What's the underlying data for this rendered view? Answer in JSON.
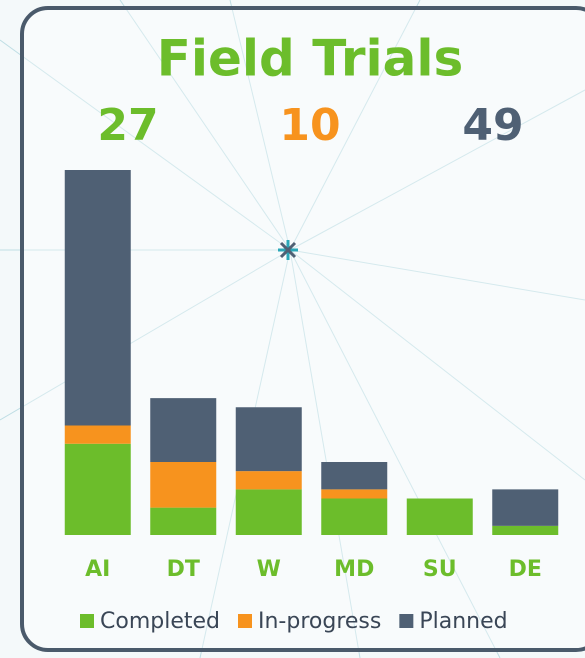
{
  "chart_data": {
    "type": "stacked-bar",
    "title": "Field Trials",
    "totals": [
      27,
      10,
      49
    ],
    "categories": [
      "AI",
      "DT",
      "W",
      "MD",
      "SU",
      "DE"
    ],
    "series": [
      {
        "name": "Completed",
        "color": "#6cbd2b",
        "values": [
          10,
          3,
          5,
          4,
          4,
          1
        ]
      },
      {
        "name": "In-progress",
        "color": "#f7931e",
        "values": [
          2,
          5,
          2,
          1,
          0,
          0
        ]
      },
      {
        "name": "Planned",
        "color": "#4f6074",
        "values": [
          28,
          7,
          7,
          3,
          0,
          4
        ]
      }
    ],
    "ylim": [
      0,
      40
    ]
  }
}
